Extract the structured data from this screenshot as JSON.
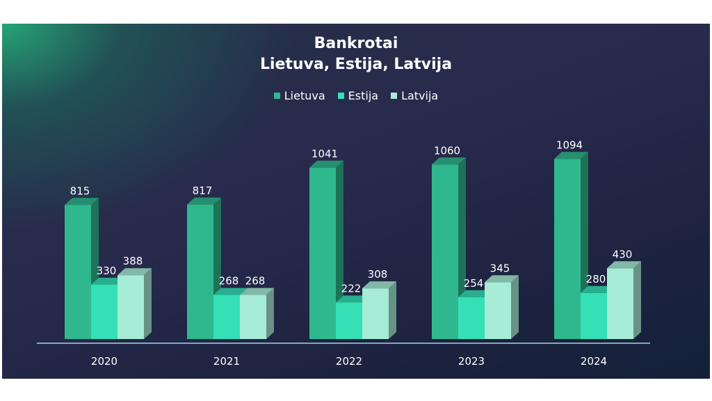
{
  "chart_data": {
    "type": "bar",
    "title": "Bankrotai",
    "subtitle": "Lietuva, Estija, Latvija",
    "categories": [
      "2020",
      "2021",
      "2022",
      "2023",
      "2024"
    ],
    "series": [
      {
        "name": "Lietuva",
        "values": [
          815,
          817,
          1041,
          1060,
          1094
        ],
        "color": "#2fb88e"
      },
      {
        "name": "Estija",
        "values": [
          330,
          268,
          222,
          254,
          280
        ],
        "color": "#35e0b6"
      },
      {
        "name": "Latvija",
        "values": [
          388,
          268,
          308,
          345,
          430
        ],
        "color": "#a6ecd6"
      }
    ],
    "ylim": [
      0,
      1100
    ],
    "legend_position": "top-center",
    "grid": false,
    "style": "3d-columns",
    "background": "#24294a",
    "axis_color": "#9fd7e6"
  }
}
